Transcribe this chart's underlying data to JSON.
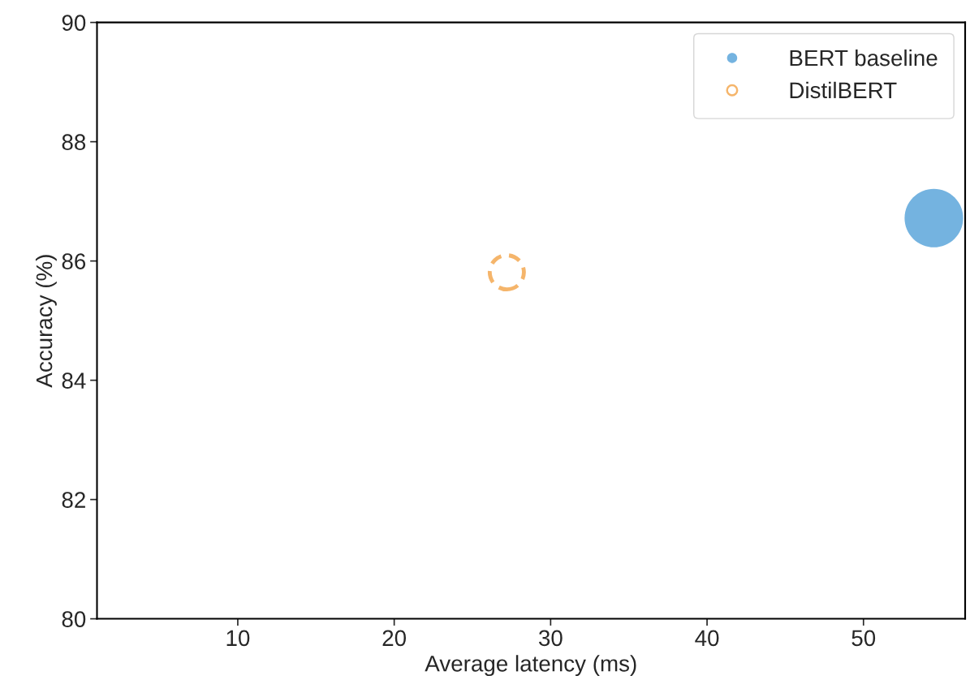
{
  "chart_data": {
    "type": "bubble",
    "xlabel": "Average latency (ms)",
    "ylabel": "Accuracy (%)",
    "xlim": [
      1,
      56.5
    ],
    "xticks": [
      10,
      20,
      30,
      40,
      50
    ],
    "ylim": [
      80,
      90
    ],
    "yticks": [
      80,
      82,
      84,
      86,
      88,
      90
    ],
    "series": [
      {
        "name": "BERT baseline",
        "color": "#74b3e0",
        "x": [
          54.5
        ],
        "values": [
          86.72
        ],
        "sizes": [
          1
        ],
        "line_style": "solid"
      },
      {
        "name": "DistilBERT",
        "color": "#f5b56b",
        "x": [
          27.2
        ],
        "values": [
          85.81
        ],
        "sizes": [
          0.34
        ],
        "line_style": "dashed"
      }
    ],
    "legend": "top right",
    "grid": false,
    "marker": "circle"
  }
}
